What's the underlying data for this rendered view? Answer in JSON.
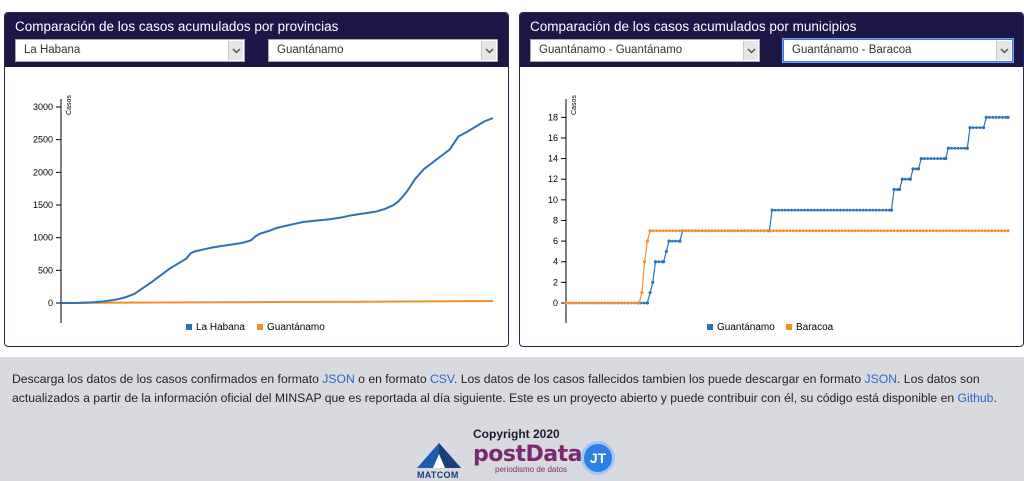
{
  "left_panel": {
    "title": "Comparación de los casos acumulados por provincias",
    "select_a": "La Habana",
    "select_b": "Guantánamo"
  },
  "right_panel": {
    "title": "Comparación de los casos acumulados por municipios",
    "select_a": "Guantánamo - Guantánamo",
    "select_b": "Guantánamo - Baracoa"
  },
  "colors": {
    "header": "#1c1747",
    "series_blue": "#2c72b8",
    "series_orange": "#f28e2b",
    "link": "#2a68c9"
  },
  "chart_data": [
    {
      "type": "line",
      "ylabel": "Casos",
      "ylim": [
        0,
        3000
      ],
      "yticks": [
        0,
        500,
        1000,
        1500,
        2000,
        2500,
        3000
      ],
      "x_index_range": [
        0,
        165
      ],
      "grid": false,
      "legend_position": "bottom",
      "series": [
        {
          "name": "La Habana",
          "color": "#2c72b8",
          "points": [
            [
              0,
              0
            ],
            [
              8,
              2
            ],
            [
              14,
              10
            ],
            [
              20,
              25
            ],
            [
              26,
              55
            ],
            [
              30,
              90
            ],
            [
              34,
              140
            ],
            [
              38,
              230
            ],
            [
              42,
              320
            ],
            [
              46,
              420
            ],
            [
              50,
              520
            ],
            [
              54,
              600
            ],
            [
              58,
              680
            ],
            [
              60,
              760
            ],
            [
              62,
              790
            ],
            [
              66,
              820
            ],
            [
              70,
              850
            ],
            [
              74,
              870
            ],
            [
              78,
              890
            ],
            [
              84,
              920
            ],
            [
              88,
              960
            ],
            [
              90,
              1020
            ],
            [
              92,
              1060
            ],
            [
              96,
              1100
            ],
            [
              100,
              1150
            ],
            [
              104,
              1180
            ],
            [
              108,
              1210
            ],
            [
              112,
              1240
            ],
            [
              118,
              1260
            ],
            [
              124,
              1280
            ],
            [
              130,
              1310
            ],
            [
              134,
              1340
            ],
            [
              138,
              1360
            ],
            [
              142,
              1380
            ],
            [
              146,
              1400
            ],
            [
              148,
              1420
            ],
            [
              150,
              1440
            ],
            [
              152,
              1470
            ],
            [
              154,
              1500
            ],
            [
              156,
              1550
            ],
            [
              158,
              1620
            ],
            [
              160,
              1700
            ],
            [
              162,
              1800
            ],
            [
              164,
              1900
            ],
            [
              168,
              2050
            ],
            [
              172,
              2150
            ],
            [
              176,
              2250
            ],
            [
              180,
              2350
            ],
            [
              184,
              2550
            ],
            [
              188,
              2620
            ],
            [
              192,
              2700
            ],
            [
              196,
              2780
            ],
            [
              200,
              2830
            ]
          ]
        },
        {
          "name": "Guantánamo",
          "color": "#f28e2b",
          "points": [
            [
              0,
              0
            ],
            [
              30,
              5
            ],
            [
              60,
              10
            ],
            [
              100,
              15
            ],
            [
              140,
              20
            ],
            [
              170,
              25
            ],
            [
              200,
              30
            ]
          ]
        }
      ]
    },
    {
      "type": "line",
      "ylabel": "Casos",
      "ylim": [
        0,
        19
      ],
      "yticks": [
        0,
        2,
        4,
        6,
        8,
        10,
        12,
        14,
        16,
        18
      ],
      "grid": false,
      "legend_position": "bottom",
      "series": [
        {
          "name": "Guantánamo",
          "color": "#2c72b8",
          "points": [
            [
              0,
              0
            ],
            [
              30,
              0
            ],
            [
              31,
              1
            ],
            [
              32,
              2
            ],
            [
              33,
              4
            ],
            [
              36,
              4
            ],
            [
              37,
              5
            ],
            [
              38,
              6
            ],
            [
              42,
              6
            ],
            [
              43,
              7
            ],
            [
              75,
              7
            ],
            [
              76,
              9
            ],
            [
              120,
              9
            ],
            [
              121,
              11
            ],
            [
              123,
              11
            ],
            [
              124,
              12
            ],
            [
              127,
              12
            ],
            [
              128,
              13
            ],
            [
              130,
              13
            ],
            [
              131,
              14
            ],
            [
              140,
              14
            ],
            [
              141,
              15
            ],
            [
              148,
              15
            ],
            [
              149,
              17
            ],
            [
              154,
              17
            ],
            [
              155,
              18
            ],
            [
              163,
              18
            ]
          ]
        },
        {
          "name": "Baracoa",
          "color": "#f28e2b",
          "points": [
            [
              0,
              0
            ],
            [
              27,
              0
            ],
            [
              28,
              1
            ],
            [
              29,
              4
            ],
            [
              30,
              6
            ],
            [
              31,
              7
            ],
            [
              163,
              7
            ]
          ]
        }
      ]
    }
  ],
  "footer": {
    "line1_a": "Descarga los datos de los casos confirmados en formato ",
    "link_json_1": "JSON",
    "line1_b": " o en formato ",
    "link_csv": "CSV",
    "line1_c": ". Los datos de los casos fallecidos tambien los puede descargar en formato ",
    "link_json_2": "JSON",
    "line1_d": ". Los datos son actualizados a partir de la información oficial del MINSAP que es reportada al día siguiente. Este es un proyecto abierto y puede contribuir con él, su código está disponible en ",
    "link_github": "Github",
    "line1_e": ".",
    "copyright": "Copyright 2020",
    "logo_matcom": "MATCOM",
    "logo_postdata": "postData",
    "logo_postdata_sub": "periodismo de datos",
    "logo_jt": "JT"
  }
}
